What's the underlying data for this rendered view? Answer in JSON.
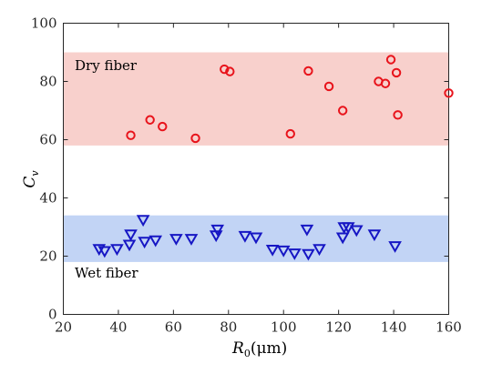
{
  "chart_data": {
    "type": "scatter",
    "xlim": [
      20,
      160
    ],
    "ylim": [
      0,
      100
    ],
    "x_ticks": [
      20,
      40,
      60,
      80,
      100,
      120,
      140,
      160
    ],
    "y_ticks": [
      0,
      20,
      40,
      60,
      80,
      100
    ],
    "x_tick_labels": [
      "20",
      "40",
      "60",
      "80",
      "100",
      "120",
      "140",
      "160"
    ],
    "y_tick_labels": [
      "0",
      "20",
      "40",
      "60",
      "80",
      "100"
    ],
    "xlabel": {
      "symbol": "R",
      "subscript": "0",
      "unit": "(μm)"
    },
    "ylabel": {
      "symbol": "C",
      "subscript": "v"
    },
    "grid": false,
    "bands": [
      {
        "label": "Dry fiber",
        "y_range": [
          58,
          90
        ],
        "color": "#f8d0cc"
      },
      {
        "label": "Wet fiber",
        "y_range": [
          18,
          34
        ],
        "color": "#c2d4f5"
      }
    ],
    "series": [
      {
        "marker": "circle",
        "color": "#e8131b",
        "points": [
          [
            44.5,
            61.5
          ],
          [
            51.5,
            66.8
          ],
          [
            56,
            64.5
          ],
          [
            68,
            60.5
          ],
          [
            78.5,
            84.2
          ],
          [
            80.5,
            83.4
          ],
          [
            102.5,
            62
          ],
          [
            109,
            83.6
          ],
          [
            116.5,
            78.3
          ],
          [
            121.5,
            70
          ],
          [
            134.5,
            80
          ],
          [
            137,
            79.3
          ],
          [
            139,
            87.5
          ],
          [
            141,
            83
          ],
          [
            141.5,
            68.5
          ],
          [
            160,
            76
          ]
        ]
      },
      {
        "marker": "triangle-down",
        "color": "#1616c4",
        "points": [
          [
            33,
            22.5
          ],
          [
            35,
            21.8
          ],
          [
            39.5,
            22.5
          ],
          [
            44,
            24
          ],
          [
            44.5,
            27.5
          ],
          [
            49,
            32.5
          ],
          [
            49.5,
            25
          ],
          [
            53.5,
            25.5
          ],
          [
            61,
            26
          ],
          [
            66.5,
            26
          ],
          [
            75.5,
            27.2
          ],
          [
            76,
            29.2
          ],
          [
            86,
            27
          ],
          [
            90,
            26.5
          ],
          [
            96,
            22.3
          ],
          [
            100,
            22
          ],
          [
            104,
            21
          ],
          [
            108.5,
            29.2
          ],
          [
            109,
            20.8
          ],
          [
            113,
            22.5
          ],
          [
            121.5,
            26.5
          ],
          [
            122,
            30
          ],
          [
            123.5,
            30
          ],
          [
            126.5,
            29
          ],
          [
            133,
            27.5
          ],
          [
            140.5,
            23.5
          ]
        ]
      }
    ]
  }
}
